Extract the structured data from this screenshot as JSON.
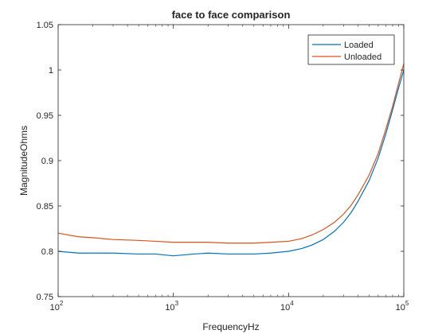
{
  "chart_data": {
    "type": "line",
    "title": "face to face comparison",
    "xlabel": "FrequencyHz",
    "ylabel": "MagnitudeOhms",
    "xscale": "log",
    "xlim": [
      100,
      100000
    ],
    "ylim": [
      0.75,
      1.05
    ],
    "yticks": [
      "0.75",
      "0.8",
      "0.85",
      "0.9",
      "0.95",
      "1",
      "1.05"
    ],
    "xticks": [
      {
        "base": "10",
        "exp": "2",
        "value": 100
      },
      {
        "base": "10",
        "exp": "3",
        "value": 1000
      },
      {
        "base": "10",
        "exp": "4",
        "value": 10000
      },
      {
        "base": "10",
        "exp": "5",
        "value": 100000
      }
    ],
    "legend_position": "top-right",
    "series": [
      {
        "name": "Loaded",
        "color": "#0072BD",
        "x": [
          100,
          150,
          200,
          300,
          500,
          700,
          1000,
          1500,
          2000,
          3000,
          5000,
          7000,
          10000,
          13000,
          16000,
          20000,
          25000,
          30000,
          35000,
          40000,
          50000,
          60000,
          70000,
          80000,
          90000,
          100000
        ],
        "y": [
          0.8,
          0.798,
          0.798,
          0.798,
          0.797,
          0.797,
          0.795,
          0.797,
          0.798,
          0.797,
          0.797,
          0.798,
          0.8,
          0.803,
          0.807,
          0.813,
          0.822,
          0.832,
          0.843,
          0.855,
          0.878,
          0.903,
          0.93,
          0.956,
          0.98,
          1.0
        ]
      },
      {
        "name": "Unloaded",
        "color": "#D95319",
        "x": [
          100,
          150,
          200,
          300,
          500,
          700,
          1000,
          1500,
          2000,
          3000,
          5000,
          7000,
          10000,
          13000,
          16000,
          20000,
          25000,
          30000,
          35000,
          40000,
          50000,
          60000,
          70000,
          80000,
          90000,
          100000
        ],
        "y": [
          0.82,
          0.816,
          0.815,
          0.813,
          0.812,
          0.811,
          0.81,
          0.81,
          0.81,
          0.809,
          0.809,
          0.81,
          0.811,
          0.814,
          0.818,
          0.824,
          0.832,
          0.841,
          0.851,
          0.862,
          0.884,
          0.908,
          0.935,
          0.96,
          0.985,
          1.007
        ]
      }
    ]
  }
}
